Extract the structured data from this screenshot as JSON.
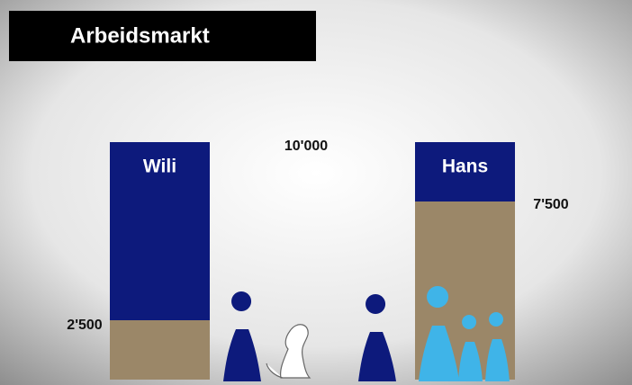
{
  "chart_data": {
    "type": "stacked-bar",
    "title": "Arbeidsmarkt",
    "categories": [
      "Wili",
      "Hans"
    ],
    "series": [
      {
        "color": "#9b8768",
        "values": [
          2500,
          7500
        ],
        "value_labels": [
          "2'500",
          "7'500"
        ]
      },
      {
        "color": "#0d1a7c",
        "values": [
          7500,
          2500
        ]
      }
    ],
    "annotation": {
      "value": 10000,
      "label": "10'000"
    },
    "ylim": [
      0,
      10000
    ]
  }
}
